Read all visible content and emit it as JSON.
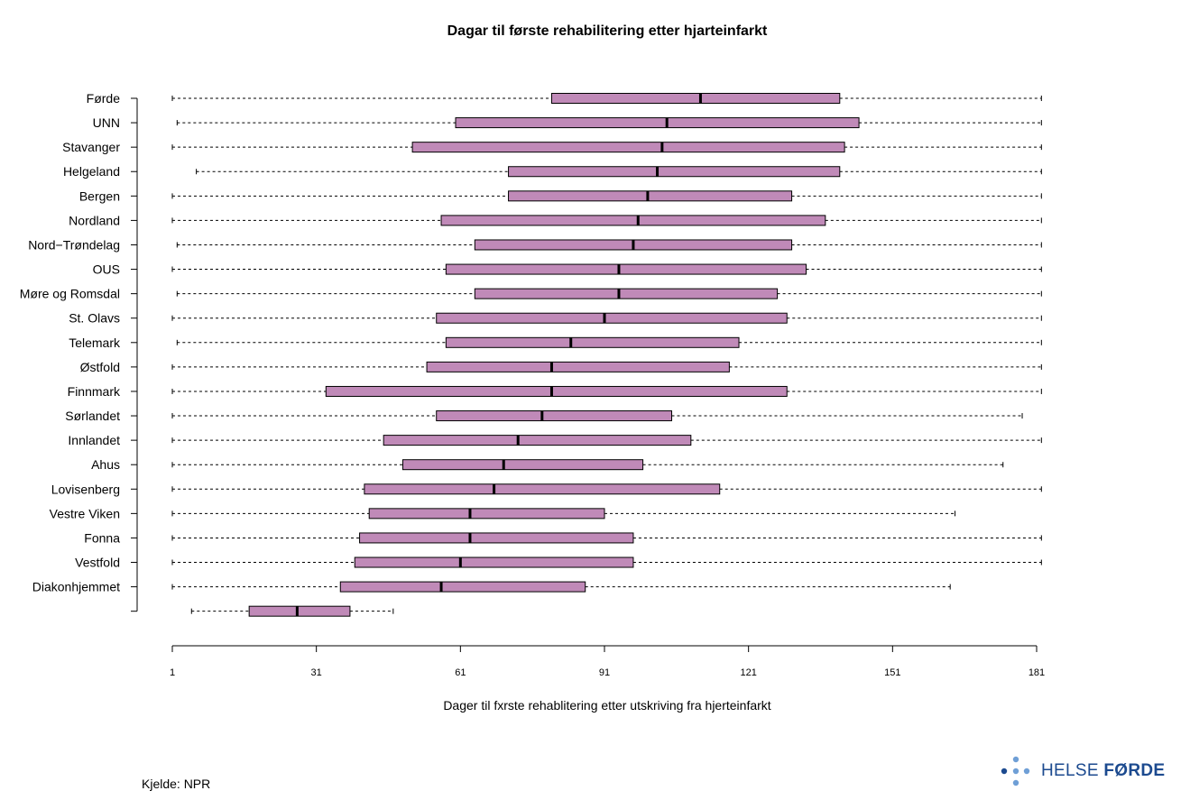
{
  "chart_data": {
    "type": "boxplot",
    "orientation": "horizontal",
    "title": "Dagar til første rehabilitering  etter hjarteinfarkt",
    "xlabel": "Dager til fxrste rehablitering etter utskriving fra hjerteinfarkt",
    "ylabel": "",
    "xlim": [
      1,
      181
    ],
    "xticks": [
      "1",
      "31",
      "61",
      "91",
      "121",
      "151",
      "181"
    ],
    "box_color": "#c08ab8",
    "grid": false,
    "legend": "none",
    "series": [
      {
        "name": "Førde",
        "min": 1,
        "q1": 80,
        "median": 111,
        "q3": 140,
        "max": 182
      },
      {
        "name": "UNN",
        "min": 2,
        "q1": 60,
        "median": 104,
        "q3": 144,
        "max": 182
      },
      {
        "name": "Stavanger",
        "min": 1,
        "q1": 51,
        "median": 103,
        "q3": 141,
        "max": 182
      },
      {
        "name": "Helgeland",
        "min": 6,
        "q1": 71,
        "median": 102,
        "q3": 140,
        "max": 182
      },
      {
        "name": "Bergen",
        "min": 1,
        "q1": 71,
        "median": 100,
        "q3": 130,
        "max": 182
      },
      {
        "name": "Nordland",
        "min": 1,
        "q1": 57,
        "median": 98,
        "q3": 137,
        "max": 182
      },
      {
        "name": "Nord−Trøndelag",
        "min": 2,
        "q1": 64,
        "median": 97,
        "q3": 130,
        "max": 182
      },
      {
        "name": "OUS",
        "min": 1,
        "q1": 58,
        "median": 94,
        "q3": 133,
        "max": 182
      },
      {
        "name": "Møre og Romsdal",
        "min": 2,
        "q1": 64,
        "median": 94,
        "q3": 127,
        "max": 182
      },
      {
        "name": "St. Olavs",
        "min": 1,
        "q1": 56,
        "median": 91,
        "q3": 129,
        "max": 182
      },
      {
        "name": "Telemark",
        "min": 2,
        "q1": 58,
        "median": 84,
        "q3": 119,
        "max": 182
      },
      {
        "name": "Østfold",
        "min": 1,
        "q1": 54,
        "median": 80,
        "q3": 117,
        "max": 182
      },
      {
        "name": "Finnmark",
        "min": 1,
        "q1": 33,
        "median": 80,
        "q3": 129,
        "max": 182
      },
      {
        "name": "Sørlandet",
        "min": 1,
        "q1": 56,
        "median": 78,
        "q3": 105,
        "max": 178
      },
      {
        "name": "Innlandet",
        "min": 1,
        "q1": 45,
        "median": 73,
        "q3": 109,
        "max": 182
      },
      {
        "name": "Ahus",
        "min": 1,
        "q1": 49,
        "median": 70,
        "q3": 99,
        "max": 174
      },
      {
        "name": "Lovisenberg",
        "min": 1,
        "q1": 41,
        "median": 68,
        "q3": 115,
        "max": 182
      },
      {
        "name": "Vestre Viken",
        "min": 1,
        "q1": 42,
        "median": 63,
        "q3": 91,
        "max": 164
      },
      {
        "name": "Fonna",
        "min": 1,
        "q1": 40,
        "median": 63,
        "q3": 97,
        "max": 182
      },
      {
        "name": "Vestfold",
        "min": 1,
        "q1": 39,
        "median": 61,
        "q3": 97,
        "max": 182
      },
      {
        "name": "Diakonhjemmet",
        "min": 1,
        "q1": 36,
        "median": 57,
        "q3": 87,
        "max": 163
      },
      {
        "name": "",
        "min": 5,
        "q1": 17,
        "median": 27,
        "q3": 38,
        "max": 47
      }
    ]
  },
  "footer": {
    "source": "Kjelde: NPR",
    "logo_word1": "HELSE ",
    "logo_word2": "FØRDE",
    "logo_color": "#1c4a8f",
    "logo_dot_color": "#6f9fd6"
  }
}
